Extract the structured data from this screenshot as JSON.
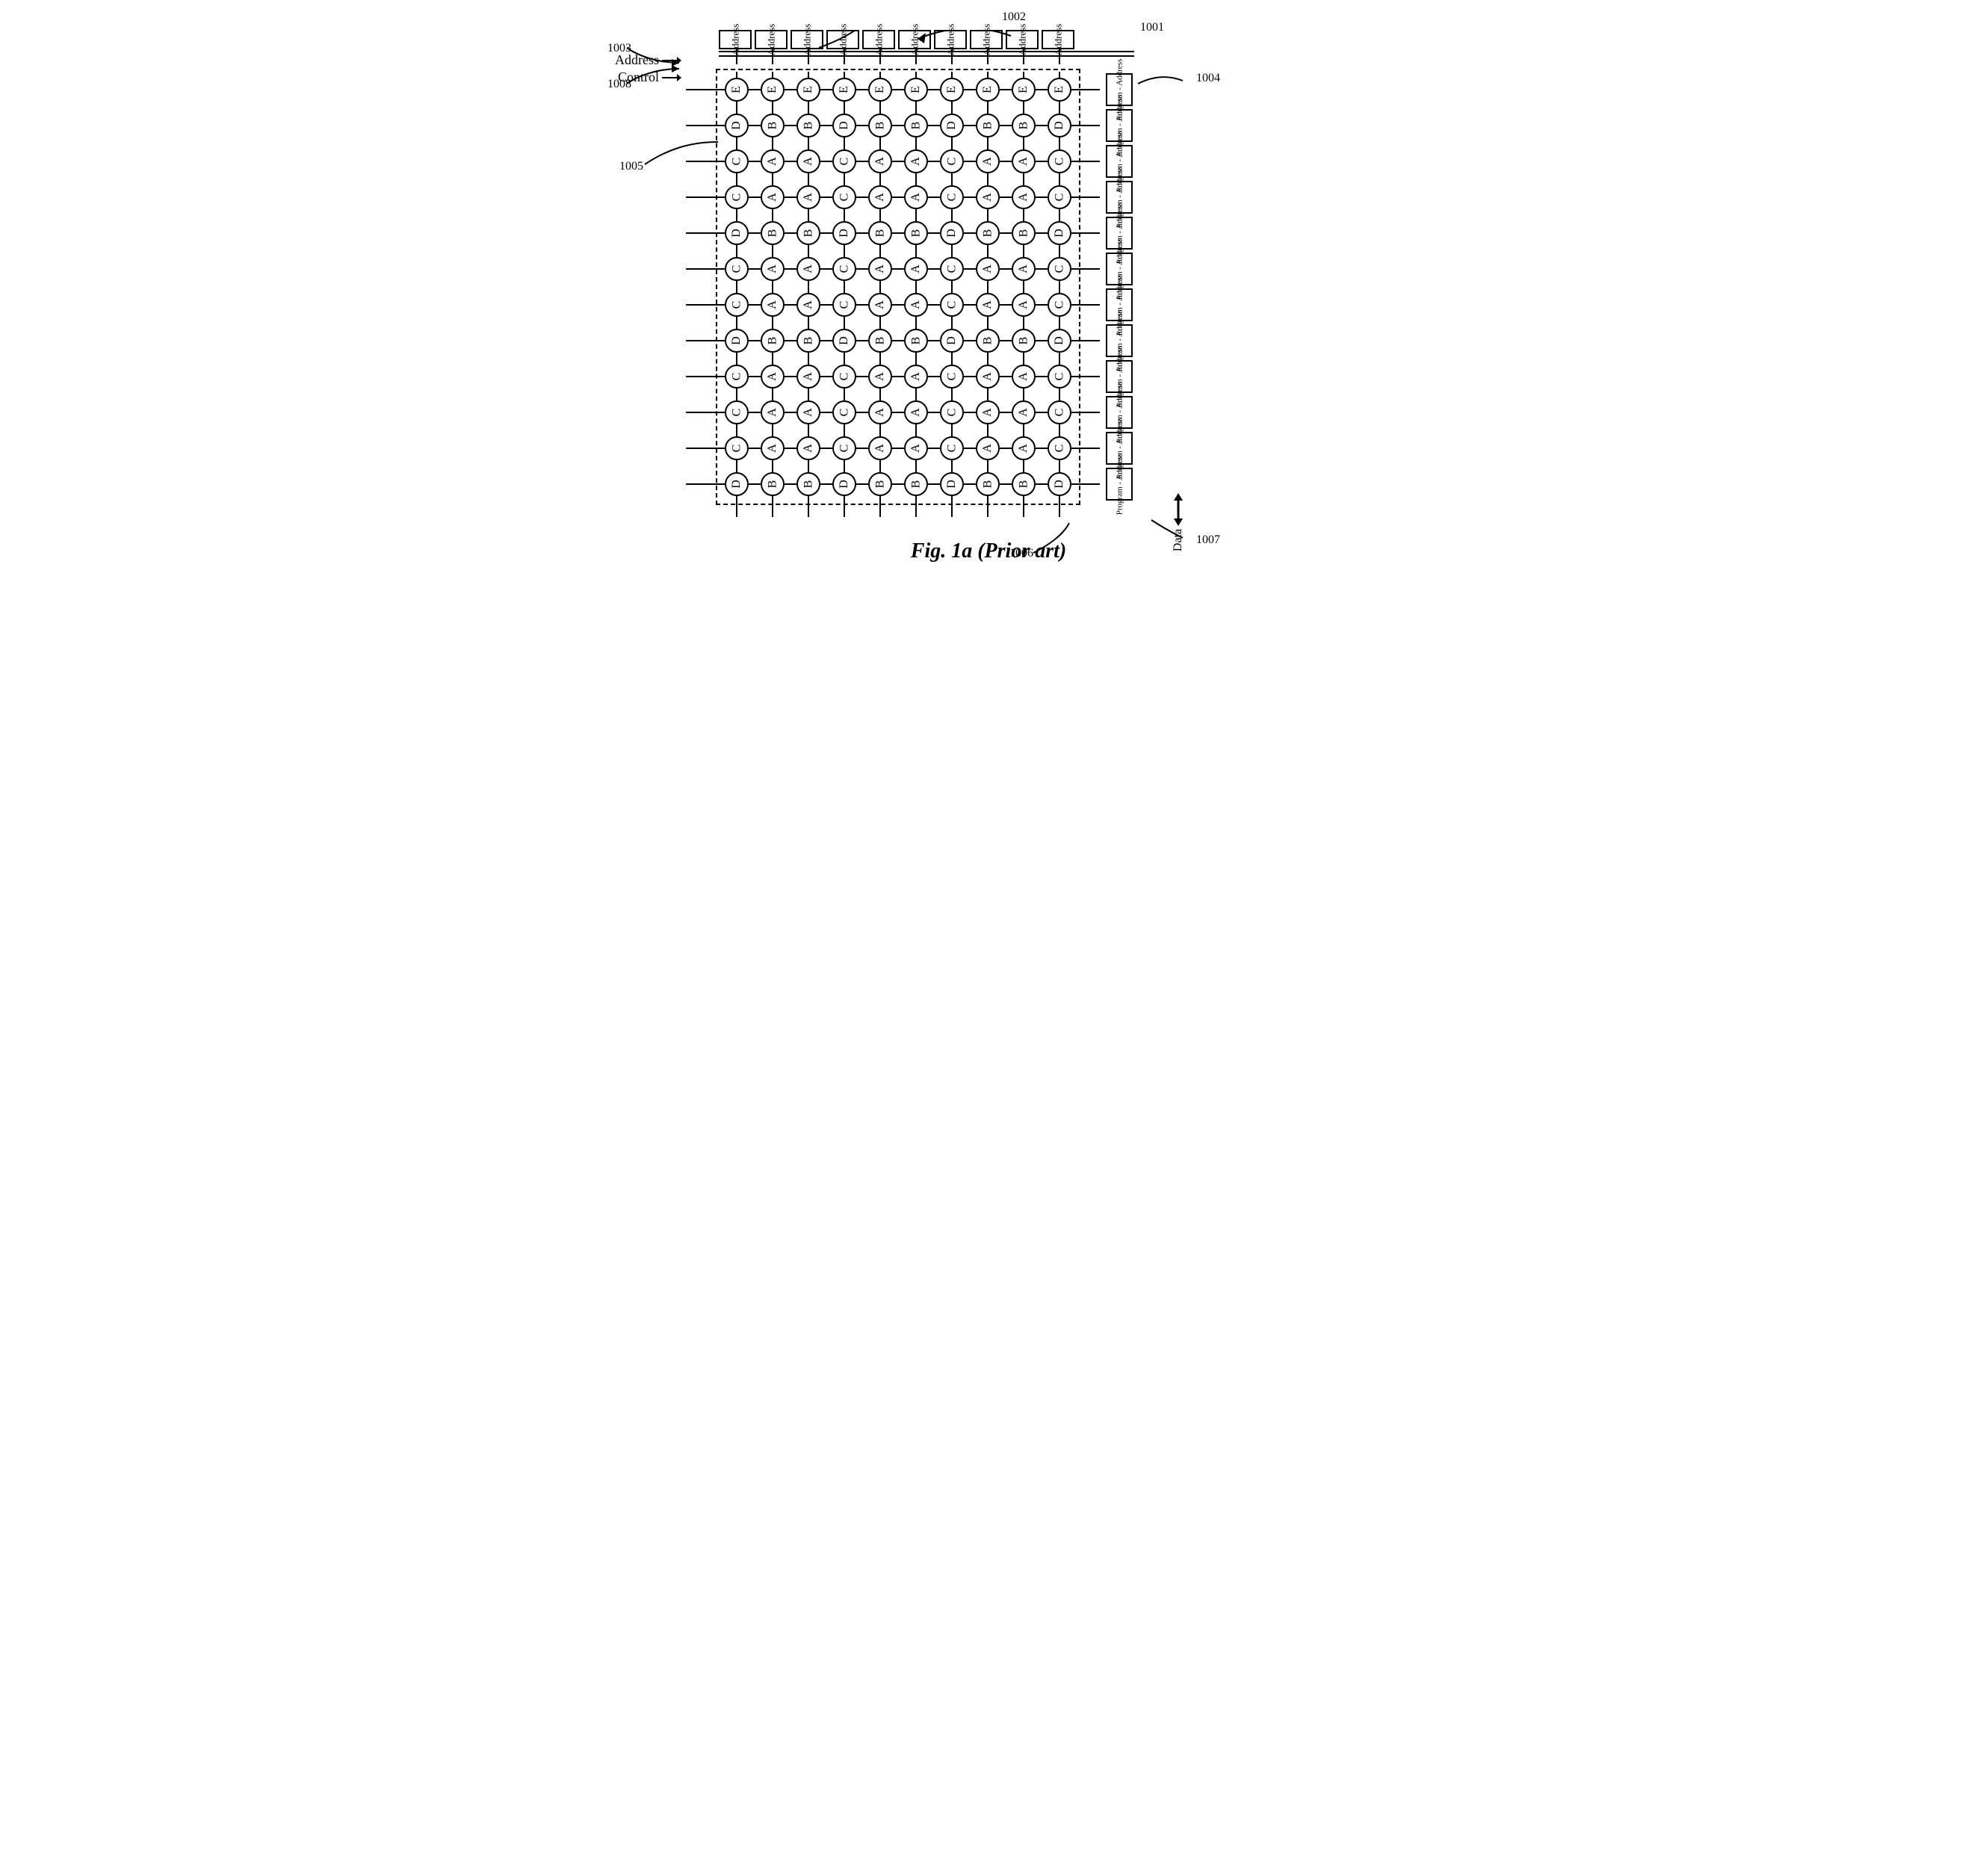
{
  "figure": {
    "caption": "Fig. 1a (Prior art)",
    "top_address_label": "Address",
    "program_label": "Program - Address",
    "data_label": "Data",
    "inputs": {
      "address": "Address",
      "control": "Control"
    },
    "refs": {
      "r1001": "1001",
      "r1002": "1002",
      "r1003": "1003",
      "r1004": "1004",
      "r1005": "1005",
      "r1006": "1006",
      "r1007": "1007",
      "r1008": "1008"
    },
    "grid": {
      "cols": 10,
      "rows": 12,
      "columns": [
        [
          "E",
          "D",
          "C",
          "C",
          "D",
          "C",
          "C",
          "D",
          "C",
          "C",
          "C",
          "D"
        ],
        [
          "E",
          "B",
          "A",
          "A",
          "B",
          "A",
          "A",
          "B",
          "A",
          "A",
          "A",
          "B"
        ],
        [
          "E",
          "B",
          "A",
          "A",
          "B",
          "A",
          "A",
          "B",
          "A",
          "A",
          "A",
          "B"
        ],
        [
          "E",
          "D",
          "C",
          "C",
          "D",
          "C",
          "C",
          "D",
          "C",
          "C",
          "C",
          "D"
        ],
        [
          "E",
          "B",
          "A",
          "A",
          "B",
          "A",
          "A",
          "B",
          "A",
          "A",
          "A",
          "B"
        ],
        [
          "E",
          "B",
          "A",
          "A",
          "B",
          "A",
          "A",
          "B",
          "A",
          "A",
          "A",
          "B"
        ],
        [
          "E",
          "D",
          "C",
          "C",
          "D",
          "C",
          "C",
          "D",
          "C",
          "C",
          "C",
          "D"
        ],
        [
          "E",
          "B",
          "A",
          "A",
          "B",
          "A",
          "A",
          "B",
          "A",
          "A",
          "A",
          "B"
        ],
        [
          "E",
          "B",
          "A",
          "A",
          "B",
          "A",
          "A",
          "B",
          "A",
          "A",
          "A",
          "B"
        ],
        [
          "E",
          "D",
          "C",
          "C",
          "D",
          "C",
          "C",
          "D",
          "C",
          "C",
          "C",
          "D"
        ]
      ]
    },
    "colors": {
      "stroke": "#000000",
      "bg": "#ffffff"
    }
  }
}
